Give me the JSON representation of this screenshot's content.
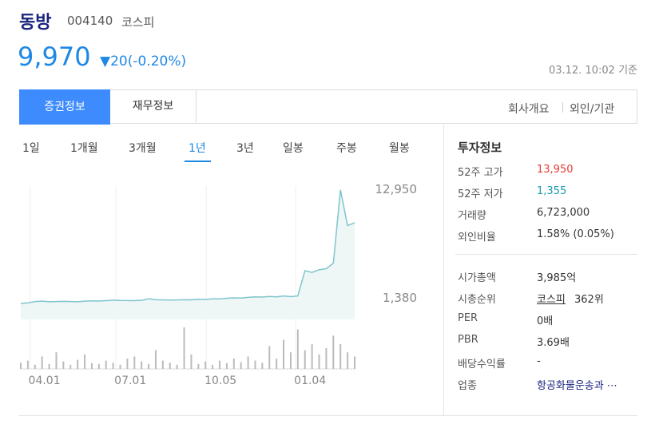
{
  "header": {
    "name": "동방",
    "code": "004140",
    "market": "코스피",
    "price": "9,970",
    "change": "▼20(-0.20%)",
    "timestamp": "03.12. 10:02 기준"
  },
  "tabs": [
    "증권정보",
    "재무정보"
  ],
  "links": [
    "회사개요",
    "외인/기관"
  ],
  "periods": [
    "1일",
    "1개월",
    "3개월",
    "1년",
    "3년",
    "일봉",
    "주봉",
    "월봉"
  ],
  "info": {
    "title": "투자정보",
    "rows": [
      [
        "52주 고가",
        "13,950"
      ],
      [
        "52주 저가",
        "1,355"
      ],
      [
        "거래량",
        "6,723,000"
      ],
      [
        "외인비율",
        "1.58% (0.05%)"
      ]
    ],
    "rows2": [
      [
        "시가총액",
        "3,985억"
      ],
      [
        "시총순위",
        "코스피",
        "362위"
      ],
      [
        "PER",
        "0배"
      ],
      [
        "PBR",
        "3.69배"
      ],
      [
        "배당수익률",
        "-"
      ],
      [
        "업종",
        "항공화물운송과 ⋯"
      ]
    ]
  },
  "chart_data": [
    {
      "type": "line",
      "color": "#7fc5cc",
      "values": [
        700,
        760,
        900,
        950,
        880,
        900,
        920,
        900,
        880,
        950,
        980,
        960,
        1000,
        1050,
        1020,
        1010,
        1000,
        1030,
        1200,
        1100,
        1080,
        1060,
        1070,
        1100,
        1080,
        1150,
        1120,
        1200,
        1180,
        1250,
        1300,
        1280,
        1350,
        1400,
        1380,
        1450,
        1400,
        1500,
        1420,
        1500,
        4200,
        4000,
        4300,
        4400,
        5000,
        12800,
        9000,
        9300
      ],
      "xlim": [
        0,
        47
      ],
      "ylim": [
        -1000,
        13890
      ],
      "xticks": [
        {
          "value": 1.3,
          "label": "04.01"
        },
        {
          "value": 13.4,
          "label": "07.01"
        },
        {
          "value": 26.1,
          "label": "10.05"
        },
        {
          "value": 38.7,
          "label": "01.04"
        }
      ],
      "yticks": [
        {
          "value": 1380,
          "label": "1,380"
        },
        {
          "value": 12950,
          "label": "12,950"
        }
      ]
    },
    {
      "type": "bar",
      "color": "#bbbbbb",
      "ylim": [
        0,
        100
      ],
      "values": [
        15,
        20,
        10,
        30,
        12,
        40,
        18,
        10,
        22,
        35,
        14,
        12,
        20,
        15,
        10,
        25,
        30,
        18,
        12,
        45,
        20,
        15,
        10,
        100,
        35,
        12,
        18,
        10,
        20,
        14,
        25,
        16,
        30,
        20,
        15,
        55,
        25,
        70,
        40,
        95,
        45,
        60,
        35,
        50,
        80,
        60,
        40,
        30
      ]
    }
  ]
}
